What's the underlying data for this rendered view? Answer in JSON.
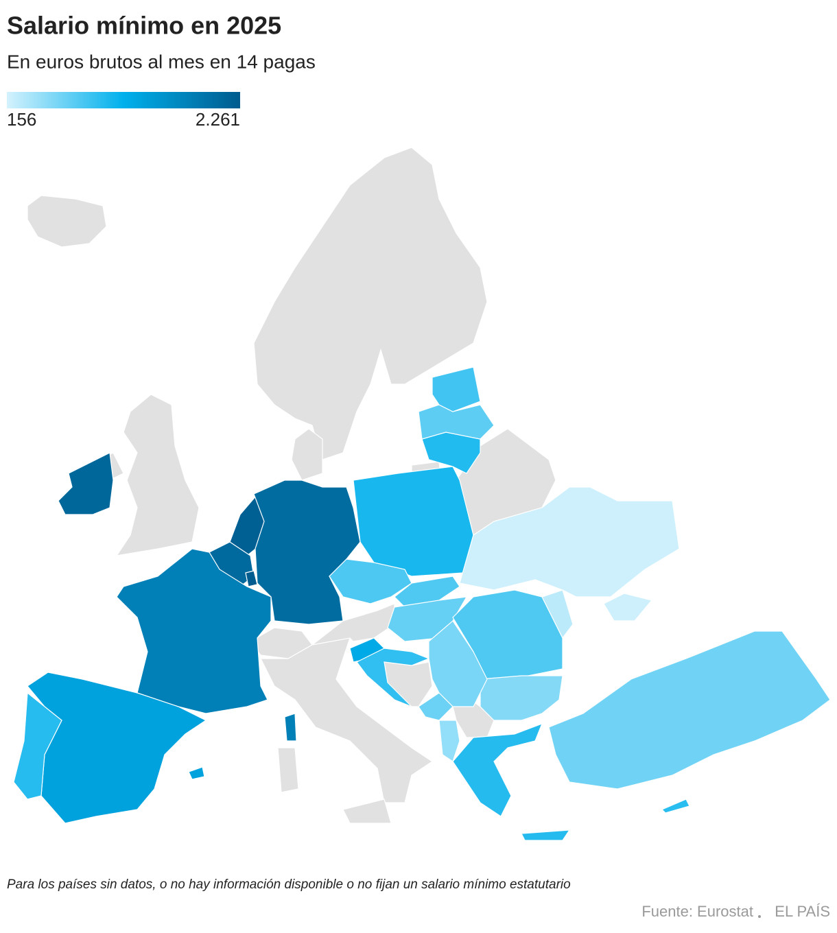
{
  "chart_data": {
    "type": "choropleth",
    "title": "Salario mínimo en 2025",
    "subtitle": "En euros brutos al mes en 14 pagas",
    "colorlim": [
      156,
      2261
    ],
    "colorticks": [
      156,
      {
        "value": 2261,
        "label": "2.261"
      }
    ],
    "colors": [
      "#d4f2fd",
      "#00b0ec",
      "#005b8e"
    ],
    "no_data_color": "#e1e1e1",
    "values": [
      2111,
      2193,
      2070,
      2261,
      2055,
      1802,
      1381,
      1015,
      1278,
      970,
      1091,
      1038,
      740,
      886,
      826,
      816,
      707,
      814,
      551,
      1027,
      608,
      670,
      480,
      280,
      190,
      650,
      1000
    ],
    "note": "Para los países sin datos, o no hay información disponible o no fijan un salario mínimo estatutario",
    "source": "Fuente: Eurostat",
    "brand": "EL PAÍS"
  }
}
